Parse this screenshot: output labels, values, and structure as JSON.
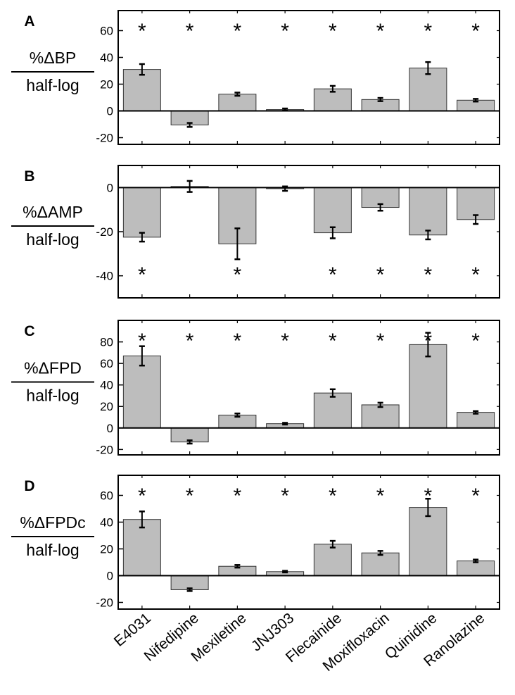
{
  "chart_data": [
    {
      "type": "bar",
      "panel": "A",
      "ylabel_top": "%ΔBP",
      "ylabel_bottom": "half-log",
      "categories": [
        "E4031",
        "Nifedipine",
        "Mexiletine",
        "JNJ303",
        "Flecainide",
        "Moxifloxacin",
        "Quinidine",
        "Ranolazine"
      ],
      "values": [
        31,
        -10.5,
        12.5,
        1,
        16.5,
        8.5,
        32,
        8
      ],
      "errors": [
        4,
        1.5,
        1.2,
        0.8,
        2.2,
        1.2,
        4.5,
        1
      ],
      "significant": [
        true,
        true,
        true,
        true,
        true,
        true,
        true,
        true
      ],
      "ylim": [
        -25,
        75
      ],
      "yticks": [
        -20,
        0,
        20,
        40,
        60
      ]
    },
    {
      "type": "bar",
      "panel": "B",
      "ylabel_top": "%ΔAMP",
      "ylabel_bottom": "half-log",
      "categories": [
        "E4031",
        "Nifedipine",
        "Mexiletine",
        "JNJ303",
        "Flecainide",
        "Moxifloxacin",
        "Quinidine",
        "Ranolazine"
      ],
      "values": [
        -22.5,
        0.5,
        -25.5,
        -0.5,
        -20.5,
        -9,
        -21.5,
        -14.5
      ],
      "errors": [
        2,
        2.5,
        7,
        1,
        2.5,
        1.5,
        2,
        2
      ],
      "significant": [
        true,
        false,
        true,
        false,
        true,
        true,
        true,
        true
      ],
      "ylim": [
        -50,
        10
      ],
      "yticks": [
        -40,
        -20,
        0
      ]
    },
    {
      "type": "bar",
      "panel": "C",
      "ylabel_top": "%ΔFPD",
      "ylabel_bottom": "half-log",
      "categories": [
        "E4031",
        "Nifedipine",
        "Mexiletine",
        "JNJ303",
        "Flecainide",
        "Moxifloxacin",
        "Quinidine",
        "Ranolazine"
      ],
      "values": [
        67,
        -13,
        12,
        4,
        32.5,
        21.5,
        77.5,
        14.5
      ],
      "errors": [
        9,
        1.5,
        1.5,
        0.8,
        3.5,
        2,
        11,
        1.2
      ],
      "significant": [
        true,
        true,
        true,
        true,
        true,
        true,
        true,
        true
      ],
      "ylim": [
        -25,
        100
      ],
      "yticks": [
        -20,
        0,
        20,
        40,
        60,
        80
      ]
    },
    {
      "type": "bar",
      "panel": "D",
      "ylabel_top": "%ΔFPDc",
      "ylabel_bottom": "half-log",
      "categories": [
        "E4031",
        "Nifedipine",
        "Mexiletine",
        "JNJ303",
        "Flecainide",
        "Moxifloxacin",
        "Quinidine",
        "Ranolazine"
      ],
      "values": [
        42,
        -10.5,
        7,
        3,
        23.5,
        17,
        51,
        11
      ],
      "errors": [
        6,
        1,
        1,
        0.6,
        2.5,
        1.5,
        6.5,
        1
      ],
      "significant": [
        true,
        true,
        true,
        true,
        true,
        true,
        true,
        true
      ],
      "ylim": [
        -25,
        75
      ],
      "yticks": [
        -20,
        0,
        20,
        40,
        60
      ]
    }
  ],
  "significance_marker": "*",
  "colors": {
    "bar_fill": "#bdbdbd",
    "bar_stroke": "#333333",
    "axis": "#000000"
  }
}
